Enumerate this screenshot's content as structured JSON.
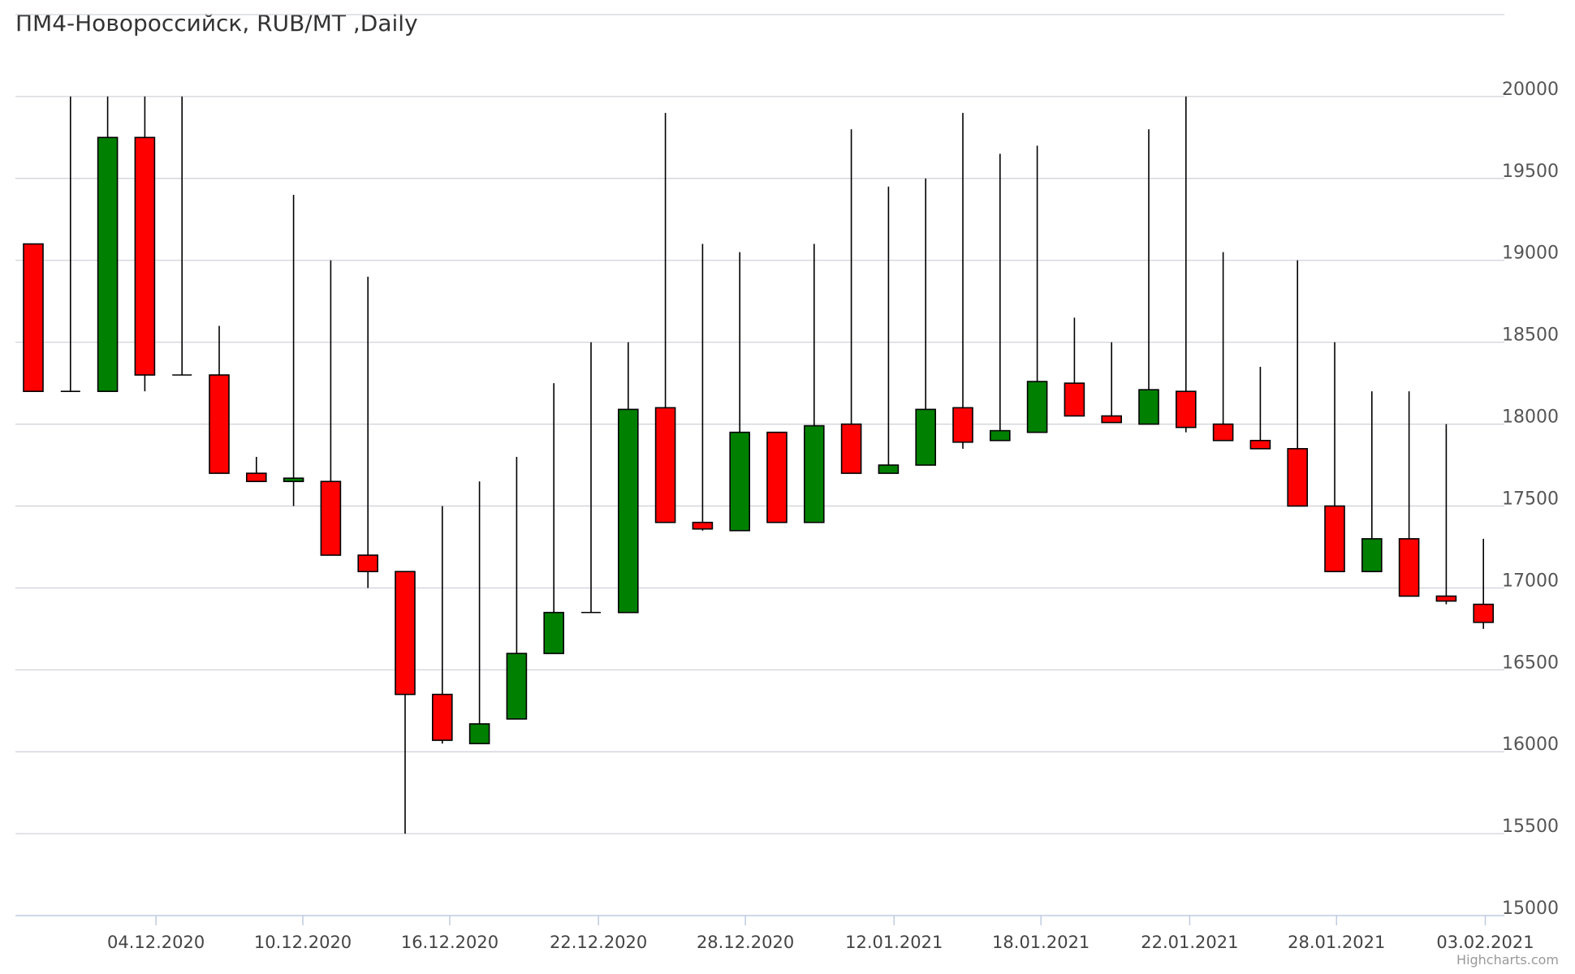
{
  "credits": "Highcharts.com",
  "colors": {
    "up": "#008000",
    "down": "#ff0000",
    "grid": "#d0d3d8",
    "wick": "#000000"
  },
  "chart_data": {
    "type": "candlestick",
    "title": "ПМ4-Новороссийск, RUB/MT ,Daily",
    "ylim": [
      15000,
      20500
    ],
    "y_ticks": [
      15000,
      15500,
      16000,
      16500,
      17000,
      17500,
      18000,
      18500,
      19000,
      19500,
      20000
    ],
    "x_tick_labels": [
      "04.12.2020",
      "10.12.2020",
      "16.12.2020",
      "22.12.2020",
      "28.12.2020",
      "12.01.2021",
      "18.01.2021",
      "22.01.2021",
      "28.01.2021",
      "03.02.2021"
    ],
    "x_tick_positions": [
      3.3,
      7.25,
      11.2,
      15.2,
      19.15,
      23.15,
      27.1,
      31.1,
      35.05,
      39.05
    ],
    "candles": [
      {
        "open": 19100,
        "high": 19100,
        "low": 18200,
        "close": 18200
      },
      {
        "open": 18200,
        "high": 20000,
        "low": 18200,
        "close": 18200
      },
      {
        "open": 18200,
        "high": 20000,
        "low": 18200,
        "close": 19750
      },
      {
        "open": 19750,
        "high": 20000,
        "low": 18200,
        "close": 18300
      },
      {
        "open": 18300,
        "high": 20000,
        "low": 18300,
        "close": 18300
      },
      {
        "open": 18300,
        "high": 18600,
        "low": 17700,
        "close": 17700
      },
      {
        "open": 17700,
        "high": 17800,
        "low": 17650,
        "close": 17650
      },
      {
        "open": 17650,
        "high": 19400,
        "low": 17500,
        "close": 17670
      },
      {
        "open": 17650,
        "high": 19000,
        "low": 17200,
        "close": 17200
      },
      {
        "open": 17200,
        "high": 18900,
        "low": 17000,
        "close": 17100
      },
      {
        "open": 17100,
        "high": 17100,
        "low": 15500,
        "close": 16350
      },
      {
        "open": 16350,
        "high": 17500,
        "low": 16050,
        "close": 16070
      },
      {
        "open": 16050,
        "high": 17650,
        "low": 16050,
        "close": 16170
      },
      {
        "open": 16200,
        "high": 17800,
        "low": 16200,
        "close": 16600
      },
      {
        "open": 16600,
        "high": 18250,
        "low": 16600,
        "close": 16850
      },
      {
        "open": 16850,
        "high": 18500,
        "low": 16850,
        "close": 16850
      },
      {
        "open": 16850,
        "high": 18500,
        "low": 16850,
        "close": 18090
      },
      {
        "open": 18100,
        "high": 19900,
        "low": 17400,
        "close": 17400
      },
      {
        "open": 17400,
        "high": 19100,
        "low": 17350,
        "close": 17360
      },
      {
        "open": 17350,
        "high": 19050,
        "low": 17350,
        "close": 17950
      },
      {
        "open": 17950,
        "high": 17950,
        "low": 17400,
        "close": 17400
      },
      {
        "open": 17400,
        "high": 19100,
        "low": 17400,
        "close": 17990
      },
      {
        "open": 18000,
        "high": 19800,
        "low": 17700,
        "close": 17700
      },
      {
        "open": 17700,
        "high": 19450,
        "low": 17700,
        "close": 17750
      },
      {
        "open": 17750,
        "high": 19500,
        "low": 17750,
        "close": 18090
      },
      {
        "open": 18100,
        "high": 19900,
        "low": 17850,
        "close": 17890
      },
      {
        "open": 17900,
        "high": 19650,
        "low": 17900,
        "close": 17960
      },
      {
        "open": 17950,
        "high": 19700,
        "low": 17950,
        "close": 18260
      },
      {
        "open": 18250,
        "high": 18650,
        "low": 18050,
        "close": 18050
      },
      {
        "open": 18050,
        "high": 18500,
        "low": 18010,
        "close": 18010
      },
      {
        "open": 18000,
        "high": 19800,
        "low": 18000,
        "close": 18210
      },
      {
        "open": 18200,
        "high": 20000,
        "low": 17950,
        "close": 17980
      },
      {
        "open": 18000,
        "high": 19050,
        "low": 17900,
        "close": 17900
      },
      {
        "open": 17900,
        "high": 18350,
        "low": 17850,
        "close": 17850
      },
      {
        "open": 17850,
        "high": 19000,
        "low": 17500,
        "close": 17500
      },
      {
        "open": 17500,
        "high": 18500,
        "low": 17100,
        "close": 17100
      },
      {
        "open": 17100,
        "high": 18200,
        "low": 17100,
        "close": 17300
      },
      {
        "open": 17300,
        "high": 18200,
        "low": 16950,
        "close": 16950
      },
      {
        "open": 16950,
        "high": 18000,
        "low": 16900,
        "close": 16920
      },
      {
        "open": 16900,
        "high": 17300,
        "low": 16750,
        "close": 16790
      }
    ]
  }
}
